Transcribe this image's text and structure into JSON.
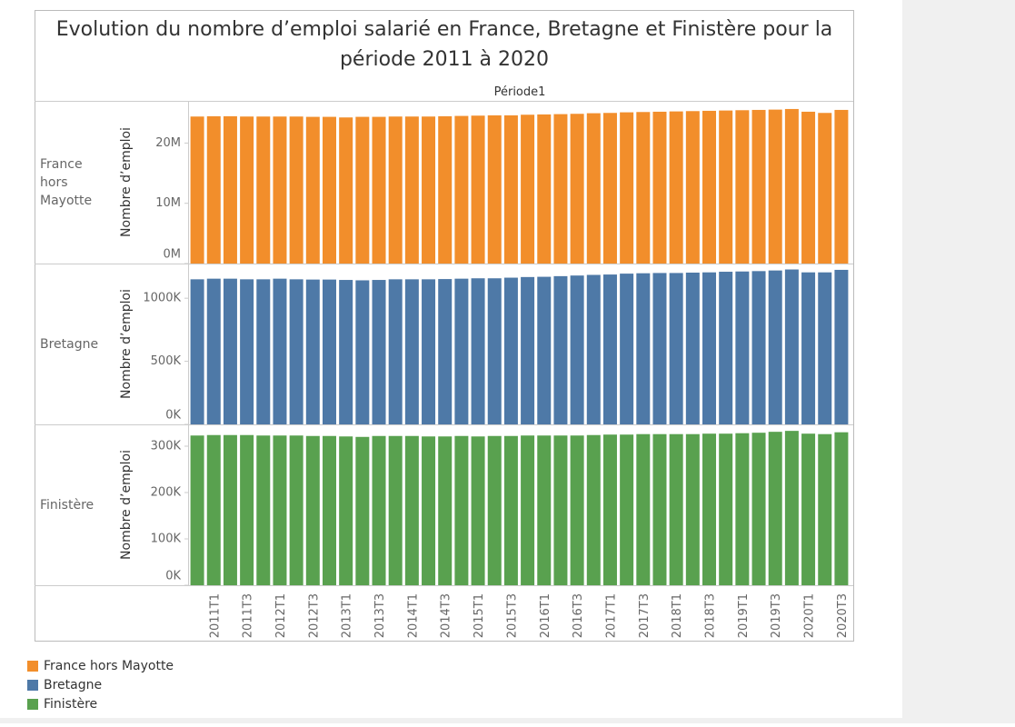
{
  "title": "Evolution du nombre d’emploi salarié en France, Bretagne et Finistère pour la période 2011 à 2020",
  "column_header": "Période1",
  "categories": [
    null,
    "2011T1",
    null,
    "2011T3",
    null,
    "2012T1",
    null,
    "2012T3",
    null,
    "2013T1",
    null,
    "2013T3",
    null,
    "2014T1",
    null,
    "2014T3",
    null,
    "2015T1",
    null,
    "2015T3",
    null,
    "2016T1",
    null,
    "2016T3",
    null,
    "2017T1",
    null,
    "2017T3",
    null,
    "2018T1",
    null,
    "2018T3",
    null,
    "2019T1",
    null,
    "2019T3",
    null,
    "2020T1",
    null,
    "2020T3"
  ],
  "chart_data": [
    {
      "type": "bar",
      "name": "France hors Mayotte",
      "color": "#f28e2b",
      "y_label": "Nombre d’emploi",
      "ylim": [
        0,
        27000000
      ],
      "yticks": [
        {
          "value": 0,
          "label": "0M"
        },
        {
          "value": 10000000,
          "label": "10M"
        },
        {
          "value": 20000000,
          "label": "20M"
        }
      ],
      "values": [
        24400000,
        24450000,
        24450000,
        24400000,
        24400000,
        24400000,
        24400000,
        24350000,
        24350000,
        24250000,
        24350000,
        24350000,
        24400000,
        24400000,
        24400000,
        24450000,
        24500000,
        24550000,
        24600000,
        24600000,
        24700000,
        24750000,
        24800000,
        24850000,
        24950000,
        25000000,
        25100000,
        25150000,
        25200000,
        25250000,
        25300000,
        25350000,
        25400000,
        25450000,
        25500000,
        25550000,
        25650000,
        25200000,
        25000000,
        25500000
      ]
    },
    {
      "type": "bar",
      "name": "Bretagne",
      "color": "#4e79a7",
      "y_label": "Nombre d’emploi",
      "ylim": [
        0,
        1275000
      ],
      "yticks": [
        {
          "value": 0,
          "label": "0K"
        },
        {
          "value": 500000,
          "label": "500K"
        },
        {
          "value": 1000000,
          "label": "1000K"
        }
      ],
      "values": [
        1150000,
        1155000,
        1155000,
        1150000,
        1150000,
        1155000,
        1150000,
        1148000,
        1148000,
        1145000,
        1142000,
        1145000,
        1150000,
        1150000,
        1150000,
        1152000,
        1155000,
        1158000,
        1158000,
        1163000,
        1168000,
        1170000,
        1175000,
        1180000,
        1185000,
        1188000,
        1195000,
        1198000,
        1200000,
        1200000,
        1203000,
        1205000,
        1210000,
        1212000,
        1215000,
        1220000,
        1228000,
        1205000,
        1205000,
        1225000
      ]
    },
    {
      "type": "bar",
      "name": "Finistère",
      "color": "#59a14f",
      "y_label": "Nombre d’emploi",
      "ylim": [
        0,
        347000
      ],
      "yticks": [
        {
          "value": 0,
          "label": "0K"
        },
        {
          "value": 100000,
          "label": "100K"
        },
        {
          "value": 200000,
          "label": "200K"
        },
        {
          "value": 300000,
          "label": "300K"
        }
      ],
      "values": [
        323000,
        324000,
        324000,
        324000,
        323000,
        323000,
        323000,
        322000,
        322000,
        321000,
        320000,
        322000,
        322000,
        322000,
        321000,
        321000,
        322000,
        321000,
        322000,
        322000,
        323000,
        323000,
        323000,
        323000,
        324000,
        325000,
        325000,
        326000,
        326000,
        326000,
        326000,
        327000,
        327000,
        328000,
        329000,
        331000,
        333000,
        327000,
        326000,
        330000
      ]
    }
  ]
}
